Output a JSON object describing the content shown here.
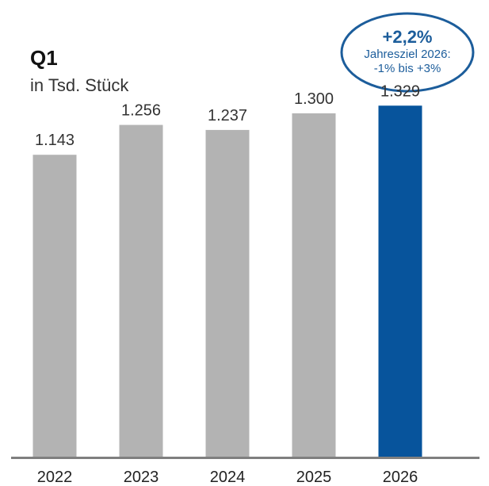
{
  "heading": {
    "title": "Q1",
    "subtitle": "in Tsd. Stück"
  },
  "badge": {
    "main": "+2,2%",
    "line1": "Jahresziel 2026:",
    "line2": "-1% bis +3%",
    "color": "#1c5d9b"
  },
  "colors": {
    "bar_default": "#b3b3b3",
    "bar_highlight": "#07549c",
    "axis": "#7f7f7f"
  },
  "chart_data": {
    "type": "bar",
    "categories": [
      "2022",
      "2023",
      "2024",
      "2025",
      "2026"
    ],
    "values": [
      1143,
      1256,
      1237,
      1300,
      1329
    ],
    "value_labels": [
      "1.143",
      "1.256",
      "1.237",
      "1.300",
      "1.329"
    ],
    "highlight_index": 4,
    "title": "Q1",
    "subtitle": "in Tsd. Stück",
    "ylim": [
      0,
      1729
    ],
    "grid": false,
    "legend": "none"
  }
}
